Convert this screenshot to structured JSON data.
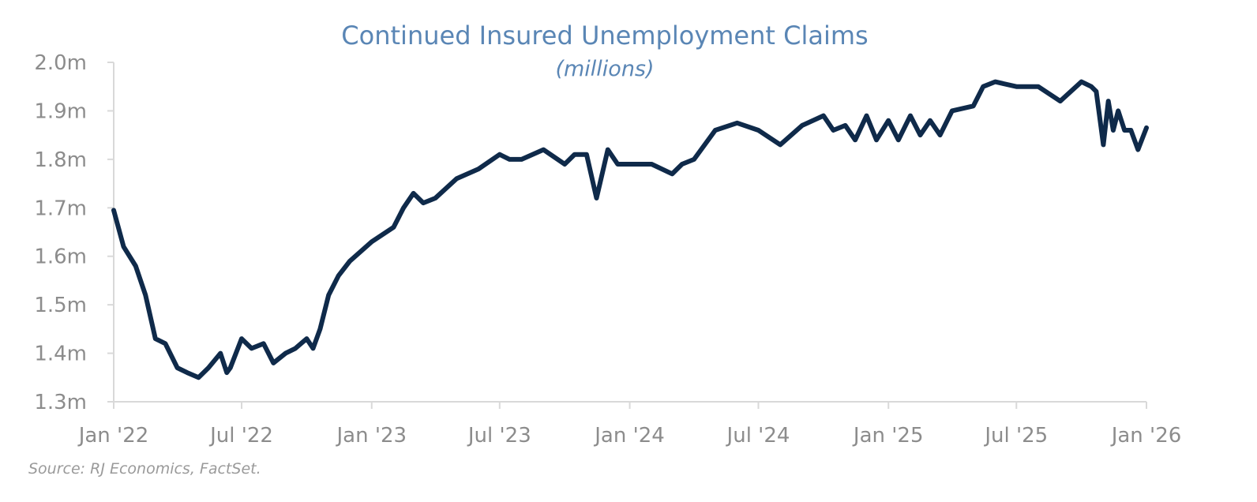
{
  "chart_data": {
    "type": "line",
    "title": "Continued Insured Unemployment Claims",
    "subtitle": "(millions)",
    "source": "Source: RJ Economics, FactSet.",
    "xlabel": "",
    "ylabel": "",
    "ylim": [
      1.3,
      2.0
    ],
    "yticks": [
      {
        "value": 2.0,
        "label": "2.0m"
      },
      {
        "value": 1.9,
        "label": "1.9m"
      },
      {
        "value": 1.8,
        "label": "1.8m"
      },
      {
        "value": 1.7,
        "label": "1.7m"
      },
      {
        "value": 1.6,
        "label": "1.6m"
      },
      {
        "value": 1.5,
        "label": "1.5m"
      },
      {
        "value": 1.4,
        "label": "1.4m"
      },
      {
        "value": 1.3,
        "label": "1.3m"
      }
    ],
    "xlim": [
      "2022-01-01",
      "2026-01-01"
    ],
    "xticks": [
      {
        "date": "2022-01-01",
        "label": "Jan '22"
      },
      {
        "date": "2022-07-01",
        "label": "Jul '22"
      },
      {
        "date": "2023-01-01",
        "label": "Jan '23"
      },
      {
        "date": "2023-07-01",
        "label": "Jul '23"
      },
      {
        "date": "2024-01-01",
        "label": "Jan '24"
      },
      {
        "date": "2024-07-01",
        "label": "Jul '24"
      },
      {
        "date": "2025-01-01",
        "label": "Jan '25"
      },
      {
        "date": "2025-07-01",
        "label": "Jul '25"
      },
      {
        "date": "2026-01-01",
        "label": "Jan '26"
      }
    ],
    "grid": false,
    "legend": "none",
    "line_color": "#0f2a4a",
    "x": [
      "2022-01-01",
      "2022-01-15",
      "2022-02-01",
      "2022-02-15",
      "2022-03-01",
      "2022-03-15",
      "2022-04-01",
      "2022-04-15",
      "2022-05-01",
      "2022-05-15",
      "2022-06-01",
      "2022-06-10",
      "2022-06-15",
      "2022-07-01",
      "2022-07-15",
      "2022-08-01",
      "2022-08-15",
      "2022-09-01",
      "2022-09-15",
      "2022-10-01",
      "2022-10-10",
      "2022-10-20",
      "2022-11-01",
      "2022-11-15",
      "2022-12-01",
      "2023-01-01",
      "2023-02-01",
      "2023-02-15",
      "2023-03-01",
      "2023-03-15",
      "2023-04-01",
      "2023-05-01",
      "2023-06-01",
      "2023-07-01",
      "2023-07-15",
      "2023-08-01",
      "2023-09-01",
      "2023-10-01",
      "2023-10-15",
      "2023-11-01",
      "2023-11-15",
      "2023-12-01",
      "2023-12-15",
      "2024-01-01",
      "2024-02-01",
      "2024-03-01",
      "2024-03-15",
      "2024-04-01",
      "2024-05-01",
      "2024-06-01",
      "2024-07-01",
      "2024-08-01",
      "2024-09-01",
      "2024-10-01",
      "2024-10-15",
      "2024-11-01",
      "2024-11-15",
      "2024-12-01",
      "2024-12-15",
      "2025-01-01",
      "2025-01-15",
      "2025-02-01",
      "2025-02-15",
      "2025-03-01",
      "2025-03-15",
      "2025-04-01",
      "2025-05-01",
      "2025-05-15",
      "2025-06-01",
      "2025-07-01",
      "2025-08-01",
      "2025-09-01",
      "2025-10-01",
      "2025-10-15",
      "2025-10-22",
      "2025-11-01",
      "2025-11-08",
      "2025-11-15",
      "2025-11-22",
      "2025-12-01",
      "2025-12-10",
      "2025-12-20",
      "2026-01-01"
    ],
    "series": [
      {
        "values": [
          1.695,
          1.62,
          1.58,
          1.52,
          1.43,
          1.42,
          1.37,
          1.36,
          1.35,
          1.37,
          1.4,
          1.36,
          1.37,
          1.43,
          1.41,
          1.42,
          1.38,
          1.4,
          1.41,
          1.43,
          1.41,
          1.45,
          1.52,
          1.56,
          1.59,
          1.63,
          1.66,
          1.7,
          1.73,
          1.71,
          1.72,
          1.76,
          1.78,
          1.81,
          1.8,
          1.8,
          1.82,
          1.79,
          1.81,
          1.81,
          1.72,
          1.82,
          1.79,
          1.79,
          1.79,
          1.77,
          1.79,
          1.8,
          1.86,
          1.875,
          1.86,
          1.83,
          1.87,
          1.89,
          1.86,
          1.87,
          1.84,
          1.89,
          1.84,
          1.88,
          1.84,
          1.89,
          1.85,
          1.88,
          1.85,
          1.9,
          1.91,
          1.95,
          1.96,
          1.95,
          1.95,
          1.92,
          1.96,
          1.95,
          1.94,
          1.83,
          1.92,
          1.86,
          1.9,
          1.86,
          1.86,
          1.82,
          1.865
        ]
      }
    ]
  }
}
